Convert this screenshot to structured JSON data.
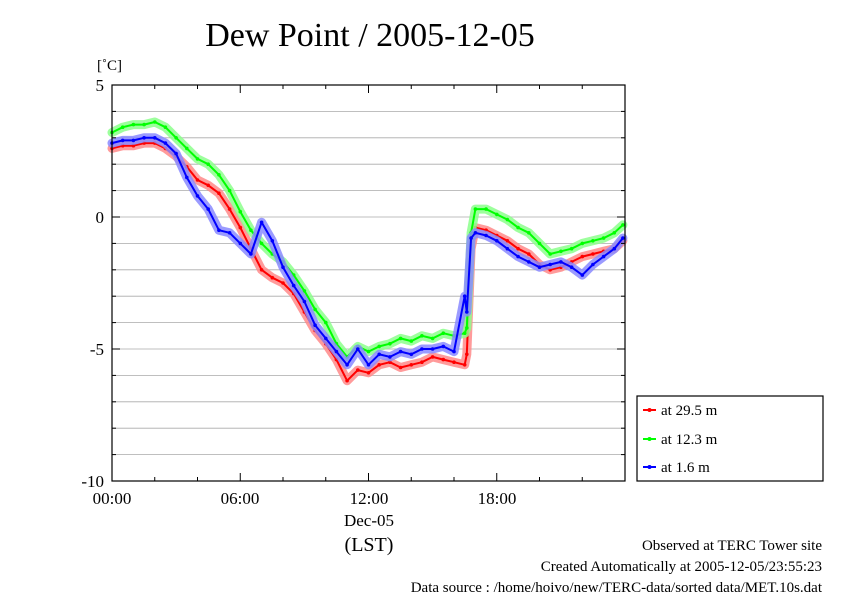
{
  "chart_data": {
    "type": "line",
    "title": "Dew Point / 2005-12-05",
    "ylabel": "[˚C]",
    "xlabel": "(LST)",
    "x_date_label": "Dec-05",
    "ylim": [
      -10,
      5
    ],
    "xlim": [
      "00:00",
      "24:00"
    ],
    "xticks": [
      "00:00",
      "06:00",
      "12:00",
      "18:00"
    ],
    "yticks": [
      "5",
      "0",
      "-5",
      "-10"
    ],
    "grid": true,
    "legend_position": "bottom-right outside",
    "x_hours": [
      0,
      0.5,
      1,
      1.5,
      2,
      2.5,
      3,
      3.5,
      4,
      4.5,
      5,
      5.5,
      6,
      6.5,
      7,
      7.5,
      8,
      8.5,
      9,
      9.5,
      10,
      10.5,
      11,
      11.5,
      12,
      12.5,
      13,
      13.5,
      14,
      14.5,
      15,
      15.5,
      16,
      16.5,
      16.6,
      16.8,
      17,
      17.5,
      18,
      18.5,
      19,
      19.5,
      20,
      20.5,
      21,
      21.5,
      22,
      22.5,
      23,
      23.5,
      23.9
    ],
    "series": [
      {
        "name": "at 29.5 m",
        "color": "#ff0000",
        "values": [
          2.6,
          2.7,
          2.7,
          2.8,
          2.8,
          2.6,
          2.3,
          1.9,
          1.4,
          1.2,
          0.9,
          0.3,
          -0.4,
          -1.2,
          -2.0,
          -2.3,
          -2.5,
          -2.9,
          -3.6,
          -4.3,
          -4.8,
          -5.4,
          -6.2,
          -5.8,
          -5.9,
          -5.6,
          -5.5,
          -5.7,
          -5.6,
          -5.5,
          -5.3,
          -5.4,
          -5.5,
          -5.6,
          -5.2,
          -1.2,
          -0.4,
          -0.5,
          -0.7,
          -0.9,
          -1.2,
          -1.4,
          -1.8,
          -2.0,
          -1.9,
          -1.7,
          -1.5,
          -1.4,
          -1.3,
          -1.2,
          -0.9
        ]
      },
      {
        "name": "at 12.3 m",
        "color": "#00ff00",
        "values": [
          3.2,
          3.4,
          3.5,
          3.5,
          3.6,
          3.4,
          3.0,
          2.6,
          2.2,
          2.0,
          1.6,
          1.0,
          0.2,
          -0.5,
          -1.0,
          -1.4,
          -1.7,
          -2.2,
          -2.8,
          -3.5,
          -4.0,
          -4.8,
          -5.3,
          -4.9,
          -5.1,
          -4.9,
          -4.8,
          -4.6,
          -4.7,
          -4.5,
          -4.6,
          -4.4,
          -4.5,
          -4.4,
          -4.2,
          -0.6,
          0.3,
          0.3,
          0.1,
          -0.1,
          -0.4,
          -0.6,
          -1.0,
          -1.4,
          -1.3,
          -1.2,
          -1.0,
          -0.9,
          -0.8,
          -0.6,
          -0.3
        ]
      },
      {
        "name": "at 1.6 m",
        "color": "#0000ff",
        "values": [
          2.8,
          2.9,
          2.9,
          3.0,
          3.0,
          2.8,
          2.4,
          1.5,
          0.8,
          0.3,
          -0.5,
          -0.6,
          -1.0,
          -1.4,
          -0.2,
          -0.9,
          -1.9,
          -2.6,
          -3.2,
          -4.1,
          -4.6,
          -5.1,
          -5.6,
          -5.0,
          -5.6,
          -5.2,
          -5.3,
          -5.1,
          -5.2,
          -5.0,
          -5.0,
          -4.9,
          -5.1,
          -3.0,
          -3.6,
          -0.8,
          -0.6,
          -0.7,
          -0.9,
          -1.2,
          -1.5,
          -1.7,
          -1.9,
          -1.8,
          -1.7,
          -1.9,
          -2.2,
          -1.8,
          -1.5,
          -1.2,
          -0.8
        ]
      }
    ]
  },
  "footer": {
    "line1": "Observed at TERC Tower site",
    "line2": "Created Automatically at 2005-12-05/23:55:23",
    "line3": "Data source : /home/hoivo/new/TERC-data/sorted  data/MET.10s.dat"
  }
}
